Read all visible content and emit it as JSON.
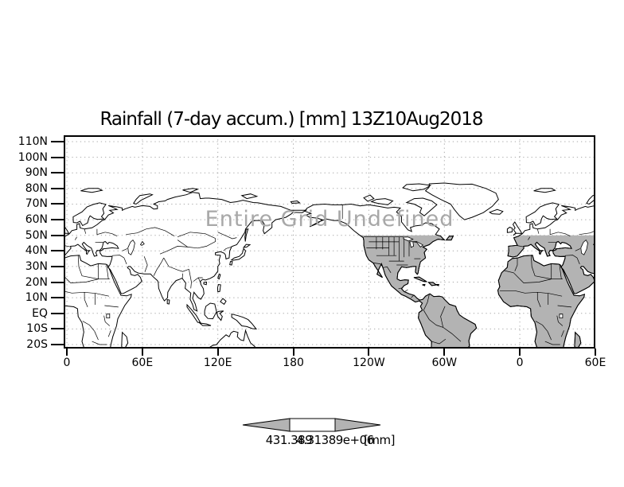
{
  "title": "Rainfall (7-day accum.) [mm] 13Z10Aug2018",
  "watermark": "Entire Grid Undefined",
  "y_axis": {
    "labels": [
      "110N",
      "100N",
      "90N",
      "80N",
      "70N",
      "60N",
      "50N",
      "40N",
      "30N",
      "20N",
      "10N",
      "EQ",
      "10S",
      "20S"
    ]
  },
  "x_axis": {
    "labels": [
      "0",
      "60E",
      "120E",
      "180",
      "120W",
      "60W",
      "0",
      "60E"
    ]
  },
  "colorbar": {
    "left_label": "431.389",
    "right_label": "4.31389e+06",
    "unit_label": "[mm]"
  },
  "colors": {
    "background": "#ffffff",
    "ink": "#000000",
    "land_gray": "#b3b3b3",
    "grid_gray": "#a9a9a9",
    "watermark_gray": "#a8a8a8"
  },
  "chart_data": {
    "type": "heatmap",
    "title": "Rainfall (7-day accum.) [mm] 13Z10Aug2018",
    "projection": "equirectangular world map, longitude 0E eastward to 60E (420 deg span)",
    "x_ticks": [
      "0",
      "60E",
      "120E",
      "180",
      "120W",
      "60W",
      "0",
      "60E"
    ],
    "y_ticks": [
      "110N",
      "100N",
      "90N",
      "80N",
      "70N",
      "60N",
      "50N",
      "40N",
      "30N",
      "20N",
      "10N",
      "EQ",
      "10S",
      "20S"
    ],
    "values": "no data plotted - Entire Grid Undefined",
    "colorbar_levels": [
      "431.389",
      "4.31389e+06"
    ],
    "units": "mm",
    "grid": true,
    "legend_position": "bottom-center arrow colorbar",
    "shaded_region_note": "land shaded gray between ~140W eastward to 60E, south of 50N"
  }
}
